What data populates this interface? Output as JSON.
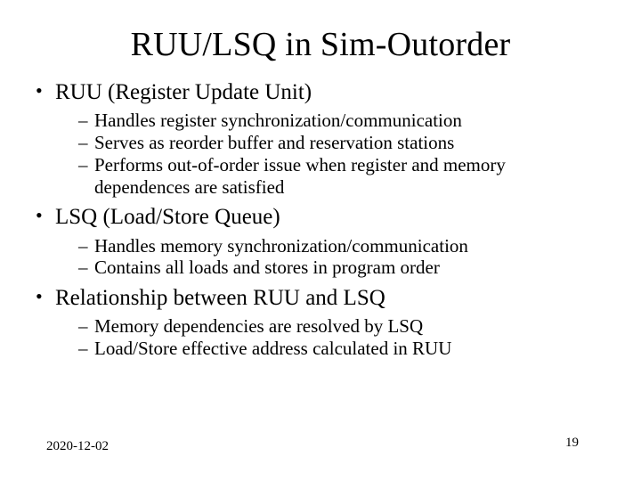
{
  "title": "RUU/LSQ in Sim-Outorder",
  "bullets": [
    {
      "text": "RUU (Register Update Unit)",
      "sub": [
        "Handles register synchronization/communication",
        "Serves as reorder buffer and reservation stations",
        "Performs out-of-order issue when register and memory dependences are satisfied"
      ]
    },
    {
      "text": "LSQ (Load/Store Queue)",
      "sub": [
        "Handles memory synchronization/communication",
        "Contains all loads and stores in program order"
      ]
    },
    {
      "text": "Relationship between RUU and LSQ",
      "sub": [
        "Memory dependencies are resolved by LSQ",
        "Load/Store effective address calculated in RUU"
      ]
    }
  ],
  "footer": {
    "date": "2020-12-02",
    "page": "19"
  }
}
